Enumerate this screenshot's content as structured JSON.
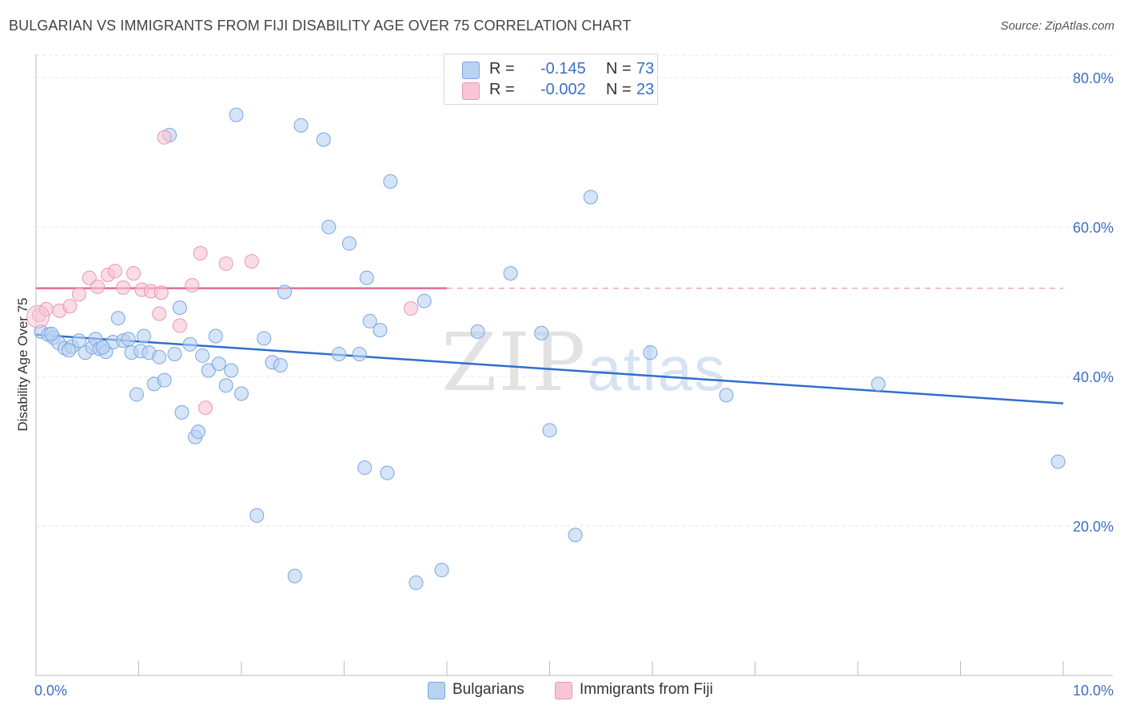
{
  "title": "BULGARIAN VS IMMIGRANTS FROM FIJI DISABILITY AGE OVER 75 CORRELATION CHART",
  "source": "Source: ZipAtlas.com",
  "watermark": {
    "zip": "ZIP",
    "atlas": "atlas"
  },
  "colors": {
    "blue_fill": "#b9d2f2",
    "blue_stroke": "#7aa6e0",
    "blue_line": "#2f6fcc",
    "pink_fill": "#f7c5d4",
    "pink_stroke": "#eb96b2",
    "pink_line": "#e06c95",
    "tick_text": "#3a6fc4",
    "grid": "#e4e4e4"
  },
  "legend": {
    "rows": [
      {
        "r_label": "R =",
        "r_value": "-0.145",
        "n_label": "N =",
        "n_value": "73",
        "swatch": "blue"
      },
      {
        "r_label": "R =",
        "r_value": "-0.002",
        "n_label": "N =",
        "n_value": "23",
        "swatch": "pink"
      }
    ]
  },
  "bottom_legend": [
    {
      "label": "Bulgarians",
      "swatch": "blue"
    },
    {
      "label": "Immigrants from Fiji",
      "swatch": "pink"
    }
  ],
  "chart_data": {
    "type": "scatter",
    "ylabel": "Disability Age Over 75",
    "xlabel": "",
    "xlim": [
      0,
      10.5
    ],
    "ylim": [
      0,
      85
    ],
    "x_tick_labels": [
      {
        "value": 0,
        "label": "0.0%"
      },
      {
        "value": 10,
        "label": "10.0%"
      }
    ],
    "y_tick_labels": [
      {
        "value": 20,
        "label": "20.0%"
      },
      {
        "value": 40,
        "label": "40.0%"
      },
      {
        "value": 60,
        "label": "60.0%"
      },
      {
        "value": 80,
        "label": "80.0%"
      }
    ],
    "series": [
      {
        "name": "Bulgarians",
        "color": "blue",
        "points": [
          [
            0.05,
            46.0
          ],
          [
            0.12,
            45.6
          ],
          [
            0.17,
            45.2
          ],
          [
            0.22,
            44.5
          ],
          [
            0.28,
            43.8
          ],
          [
            0.35,
            44.0
          ],
          [
            0.42,
            44.8
          ],
          [
            0.48,
            43.2
          ],
          [
            0.55,
            43.9
          ],
          [
            0.58,
            45.0
          ],
          [
            0.62,
            43.7
          ],
          [
            0.68,
            43.3
          ],
          [
            0.75,
            44.6
          ],
          [
            0.8,
            47.8
          ],
          [
            0.85,
            44.8
          ],
          [
            0.9,
            45.0
          ],
          [
            0.93,
            43.2
          ],
          [
            0.98,
            37.6
          ],
          [
            1.02,
            43.4
          ],
          [
            1.05,
            45.4
          ],
          [
            1.1,
            43.2
          ],
          [
            1.15,
            39.0
          ],
          [
            1.2,
            42.6
          ],
          [
            1.25,
            39.5
          ],
          [
            1.3,
            72.3
          ],
          [
            1.35,
            43.0
          ],
          [
            1.4,
            49.2
          ],
          [
            1.42,
            35.2
          ],
          [
            1.5,
            44.3
          ],
          [
            1.55,
            31.9
          ],
          [
            1.58,
            32.6
          ],
          [
            1.62,
            42.8
          ],
          [
            1.68,
            40.8
          ],
          [
            1.75,
            45.4
          ],
          [
            1.78,
            41.7
          ],
          [
            1.85,
            38.8
          ],
          [
            1.9,
            40.8
          ],
          [
            1.95,
            75.0
          ],
          [
            2.0,
            37.7
          ],
          [
            2.15,
            21.4
          ],
          [
            2.22,
            45.1
          ],
          [
            2.3,
            41.9
          ],
          [
            2.38,
            41.5
          ],
          [
            2.42,
            51.3
          ],
          [
            2.52,
            13.3
          ],
          [
            2.58,
            73.6
          ],
          [
            2.8,
            71.7
          ],
          [
            2.85,
            60.0
          ],
          [
            2.95,
            43.0
          ],
          [
            3.05,
            57.8
          ],
          [
            3.15,
            43.0
          ],
          [
            3.2,
            27.8
          ],
          [
            3.22,
            53.2
          ],
          [
            3.25,
            47.4
          ],
          [
            3.35,
            46.2
          ],
          [
            3.42,
            27.1
          ],
          [
            3.45,
            66.1
          ],
          [
            3.7,
            12.4
          ],
          [
            3.78,
            50.1
          ],
          [
            3.95,
            14.1
          ],
          [
            4.3,
            46.0
          ],
          [
            4.62,
            53.8
          ],
          [
            4.92,
            45.8
          ],
          [
            5.0,
            32.8
          ],
          [
            5.25,
            18.8
          ],
          [
            5.4,
            64.0
          ],
          [
            5.98,
            43.2
          ],
          [
            6.72,
            37.5
          ],
          [
            8.2,
            39.0
          ],
          [
            9.95,
            28.6
          ],
          [
            0.15,
            45.7
          ],
          [
            0.32,
            43.5
          ],
          [
            0.65,
            43.9
          ]
        ],
        "trend": {
          "x": [
            0,
            10
          ],
          "y": [
            45.6,
            36.4
          ],
          "dashed_from": null
        }
      },
      {
        "name": "Immigrants from Fiji",
        "color": "pink",
        "points": [
          [
            0.03,
            48.2
          ],
          [
            0.1,
            49.0
          ],
          [
            0.23,
            48.8
          ],
          [
            0.33,
            49.4
          ],
          [
            0.42,
            51.0
          ],
          [
            0.52,
            53.2
          ],
          [
            0.6,
            52.0
          ],
          [
            0.7,
            53.6
          ],
          [
            0.77,
            54.1
          ],
          [
            0.85,
            51.9
          ],
          [
            0.95,
            53.8
          ],
          [
            1.03,
            51.6
          ],
          [
            1.12,
            51.4
          ],
          [
            1.2,
            48.4
          ],
          [
            1.22,
            51.2
          ],
          [
            1.25,
            72.0
          ],
          [
            1.4,
            46.8
          ],
          [
            1.52,
            52.2
          ],
          [
            1.6,
            56.5
          ],
          [
            1.65,
            35.8
          ],
          [
            1.85,
            55.1
          ],
          [
            2.1,
            55.4
          ],
          [
            3.65,
            49.1
          ]
        ],
        "trend": {
          "x": [
            0,
            10
          ],
          "y": [
            51.8,
            51.8
          ],
          "dashed_from": 4.0
        }
      }
    ]
  }
}
